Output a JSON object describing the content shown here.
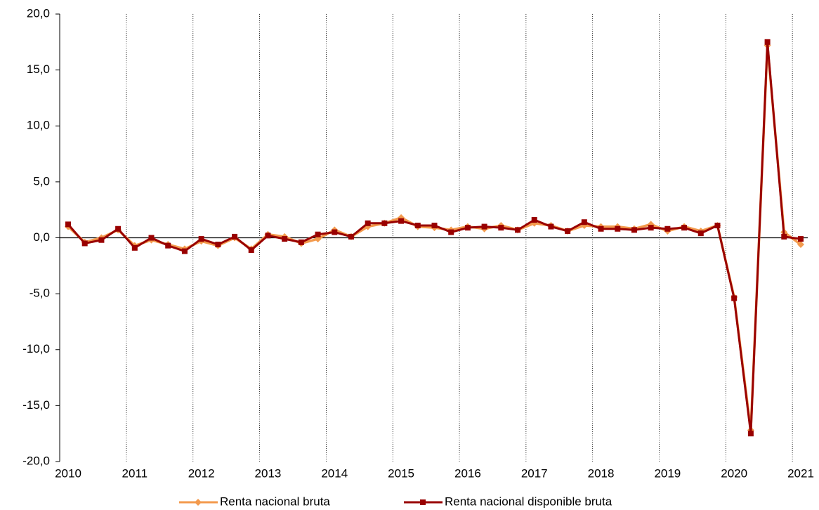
{
  "chart_data": {
    "type": "line",
    "categories": [
      "2010",
      null,
      null,
      null,
      "2011",
      null,
      null,
      null,
      "2012",
      null,
      null,
      null,
      "2013",
      null,
      null,
      null,
      "2014",
      null,
      null,
      null,
      "2015",
      null,
      null,
      null,
      "2016",
      null,
      null,
      null,
      "2017",
      null,
      null,
      null,
      "2018",
      null,
      null,
      null,
      "2019",
      null,
      null,
      null,
      "2020",
      null,
      null,
      null,
      "2021"
    ],
    "series": [
      {
        "name": "Renta nacional bruta",
        "color": "#f39a4d",
        "marker": "diamond",
        "values": [
          1.0,
          -0.4,
          0.0,
          0.7,
          -0.7,
          -0.2,
          -0.6,
          -1.0,
          -0.3,
          -0.7,
          0.0,
          -1.0,
          0.3,
          0.1,
          -0.5,
          -0.1,
          0.7,
          0.1,
          1.0,
          1.3,
          1.8,
          1.0,
          0.9,
          0.7,
          1.0,
          0.8,
          1.1,
          0.7,
          1.3,
          1.1,
          0.6,
          1.1,
          1.0,
          1.0,
          0.8,
          1.2,
          0.6,
          1.0,
          0.6,
          1.1,
          -5.3,
          -17.2,
          17.2,
          0.5,
          -0.6
        ]
      },
      {
        "name": "Renta nacional disponible bruta",
        "color": "#990000",
        "marker": "square",
        "values": [
          1.2,
          -0.5,
          -0.2,
          0.8,
          -0.9,
          0.0,
          -0.7,
          -1.2,
          -0.1,
          -0.6,
          0.1,
          -1.1,
          0.2,
          -0.1,
          -0.4,
          0.3,
          0.5,
          0.1,
          1.3,
          1.3,
          1.5,
          1.1,
          1.1,
          0.5,
          0.9,
          1.0,
          0.9,
          0.7,
          1.6,
          1.0,
          0.6,
          1.4,
          0.8,
          0.8,
          0.7,
          0.9,
          0.8,
          0.9,
          0.4,
          1.1,
          -5.4,
          -17.5,
          17.5,
          0.1,
          -0.1
        ]
      }
    ],
    "ylim": [
      -20,
      20
    ],
    "yticks": [
      {
        "value": -20,
        "label": "-20,0"
      },
      {
        "value": -15,
        "label": "-15,0"
      },
      {
        "value": -10,
        "label": "-10,0"
      },
      {
        "value": -5,
        "label": "-5,0"
      },
      {
        "value": 0,
        "label": "0,0"
      },
      {
        "value": 5,
        "label": "5,0"
      },
      {
        "value": 10,
        "label": "10,0"
      },
      {
        "value": 15,
        "label": "15,0"
      },
      {
        "value": 20,
        "label": "20,0"
      }
    ],
    "legend": "bottom"
  }
}
